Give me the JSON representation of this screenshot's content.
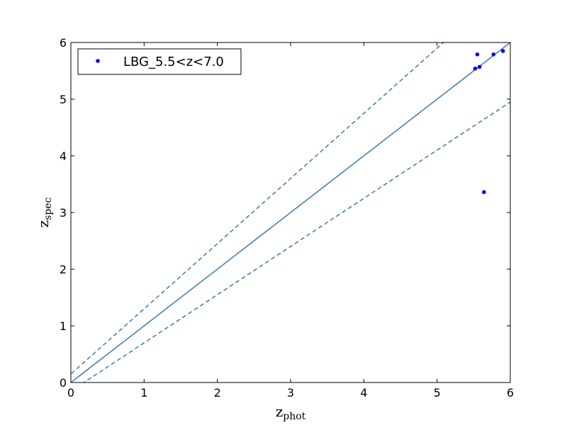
{
  "chart_data": {
    "type": "scatter",
    "title": "",
    "xlabel": {
      "main": "z",
      "sub": "phot"
    },
    "ylabel": {
      "main": "z",
      "sub": "spec"
    },
    "xlim": [
      0,
      6
    ],
    "ylim": [
      0,
      6
    ],
    "xticks": [
      "0",
      "1",
      "2",
      "3",
      "4",
      "5",
      "6"
    ],
    "yticks": [
      "0",
      "1",
      "2",
      "3",
      "4",
      "5",
      "6"
    ],
    "grid": false,
    "legend_position": "top-left",
    "series": [
      {
        "name": "LBG_5.5<z<7.0",
        "color": "#0000ff",
        "marker": "point",
        "points": [
          {
            "x": 5.52,
            "y": 5.54
          },
          {
            "x": 5.55,
            "y": 5.79
          },
          {
            "x": 5.58,
            "y": 5.57
          },
          {
            "x": 5.64,
            "y": 3.36
          },
          {
            "x": 5.77,
            "y": 5.79
          },
          {
            "x": 5.9,
            "y": 5.85
          }
        ]
      }
    ],
    "reference_lines": [
      {
        "kind": "one-to-one",
        "style": "solid",
        "color": "#4682b4",
        "formula": "y = x"
      },
      {
        "kind": "upper-bound",
        "style": "dashed",
        "color": "#4682b4",
        "formula": "y = x + 0.15(1 + x)"
      },
      {
        "kind": "lower-bound",
        "style": "dashed",
        "color": "#4682b4",
        "formula": "y = x - 0.15(1 + x)"
      }
    ]
  }
}
